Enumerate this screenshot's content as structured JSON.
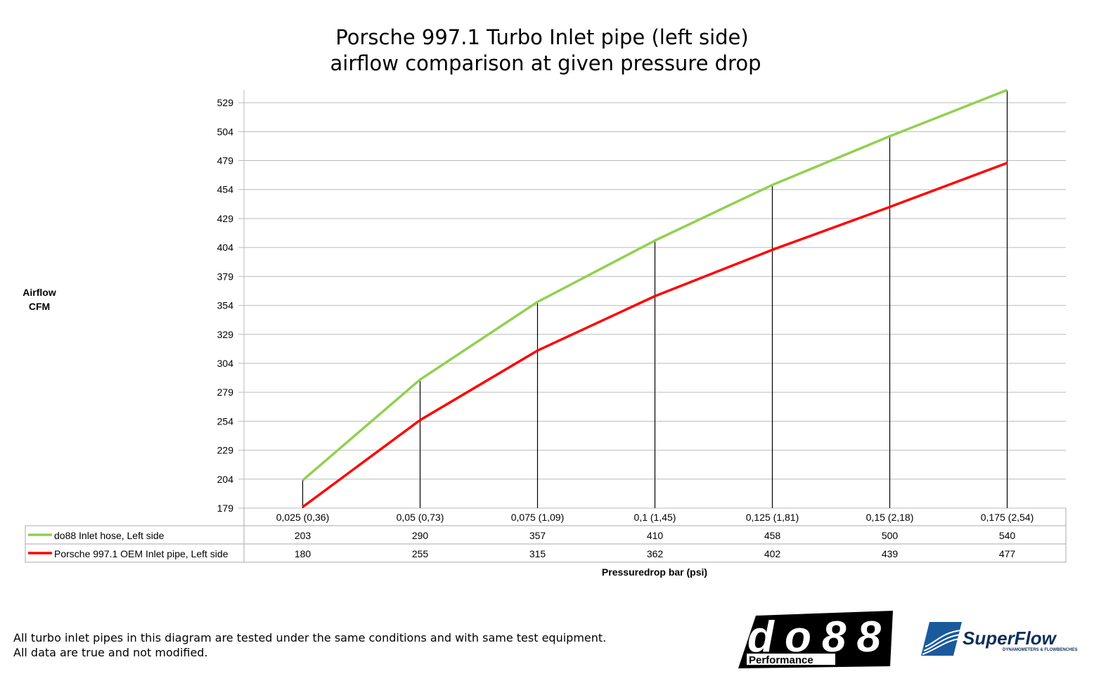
{
  "chart_data": {
    "type": "line",
    "title": [
      "Porsche 997.1 Turbo Inlet pipe (left side)",
      "airflow comparison at given pressure drop"
    ],
    "ylabel": [
      "Airflow",
      "CFM"
    ],
    "xlabel": "Pressuredrop bar (psi)",
    "categories": [
      "0,025 (0,36)",
      "0,05 (0,73)",
      "0,075 (1,09)",
      "0,1 (1,45)",
      "0,125 (1,81)",
      "0,15 (2,18)",
      "0,175 (2,54)"
    ],
    "yticks": [
      179,
      204,
      229,
      254,
      279,
      304,
      329,
      354,
      379,
      404,
      429,
      454,
      479,
      504,
      529
    ],
    "ylim": [
      179,
      540
    ],
    "grid": true,
    "drop_lines": true,
    "legend": "data-table-below",
    "series": [
      {
        "name": "do88 Inlet hose, Left side",
        "color": "#92d050",
        "values": [
          203,
          290,
          357,
          410,
          458,
          500,
          540
        ]
      },
      {
        "name": "Porsche 997.1 OEM Inlet pipe, Left side",
        "color": "#ff0000",
        "values": [
          180,
          255,
          315,
          362,
          402,
          439,
          477
        ]
      }
    ]
  },
  "footnote": [
    "All turbo inlet pipes in this diagram are tested under the same conditions and with same test equipment.",
    "All data are true and not modified."
  ],
  "logos": {
    "do88": {
      "text": "do88",
      "sub": "Performance"
    },
    "superflow": {
      "text": "SuperFlow",
      "sub": "DYNAMOMETERS & FLOWBENCHES"
    }
  }
}
